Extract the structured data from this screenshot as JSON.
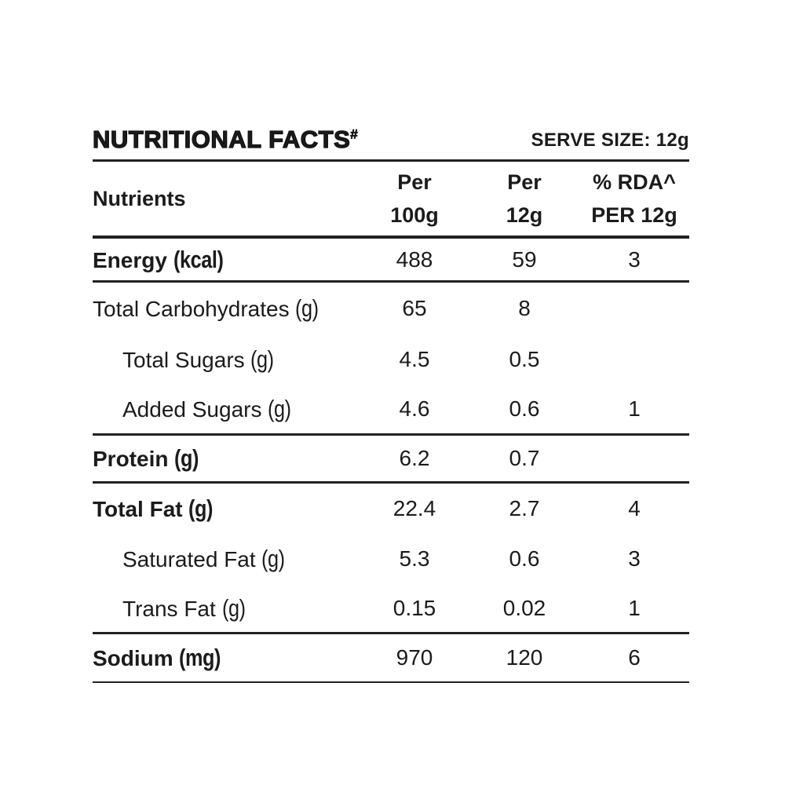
{
  "title": {
    "text": "NUTRITIONAL FACTS",
    "sup": "#"
  },
  "serve_size": "SERVE SIZE: 12g",
  "colors": {
    "text": "#1b1b1b",
    "rules": "#222222",
    "background": "#ffffff"
  },
  "table": {
    "nutrients_header": "Nutrients",
    "columns": [
      {
        "line1": "Per",
        "line2": "100g"
      },
      {
        "line1": "Per",
        "line2": "12g"
      },
      {
        "line1": "% RDA^",
        "line2": "PER 12g"
      }
    ],
    "rows": [
      {
        "name": "Energy",
        "unit": "(kcal)",
        "per100": "488",
        "per12": "59",
        "rda": "3"
      },
      {
        "name": "Total Carbohydrates",
        "unit": "(g)",
        "per100": "65",
        "per12": "8",
        "rda": ""
      },
      {
        "name": "Total Sugars",
        "unit": "(g)",
        "per100": "4.5",
        "per12": "0.5",
        "rda": ""
      },
      {
        "name": "Added Sugars",
        "unit": "(g)",
        "per100": "4.6",
        "per12": "0.6",
        "rda": "1"
      },
      {
        "name": "Protein",
        "unit": "(g)",
        "per100": "6.2",
        "per12": "0.7",
        "rda": ""
      },
      {
        "name": "Total Fat",
        "unit": "(g)",
        "per100": "22.4",
        "per12": "2.7",
        "rda": "4"
      },
      {
        "name": "Saturated Fat",
        "unit": "(g)",
        "per100": "5.3",
        "per12": "0.6",
        "rda": "3"
      },
      {
        "name": "Trans Fat",
        "unit": "(g)",
        "per100": "0.15",
        "per12": "0.02",
        "rda": "1"
      },
      {
        "name": "Sodium",
        "unit": "(mg)",
        "per100": "970",
        "per12": "120",
        "rda": "6"
      }
    ]
  }
}
